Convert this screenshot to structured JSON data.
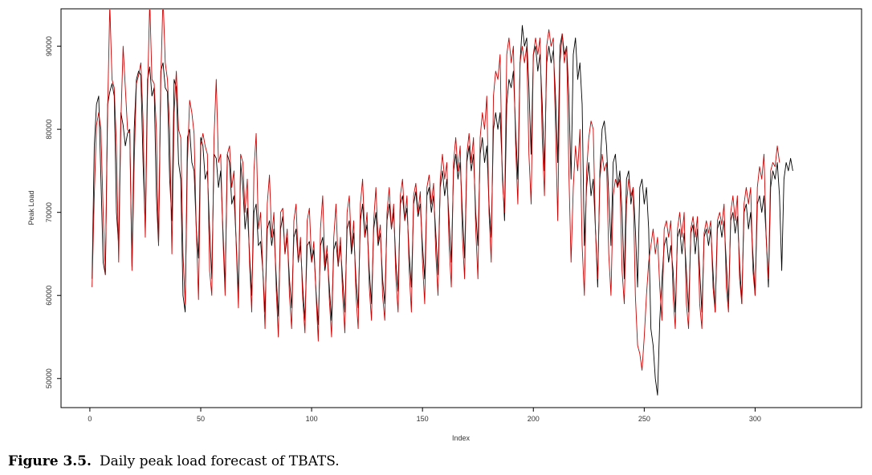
{
  "caption": {
    "label": "Figure 3.5.",
    "text": "Daily peak load forecast of TBATS."
  },
  "chart_data": {
    "type": "line",
    "xlabel": "Index",
    "ylabel": "Peak Load",
    "xlim": [
      -13,
      348
    ],
    "ylim": [
      46500,
      94500
    ],
    "xticks": [
      0,
      50,
      100,
      150,
      200,
      250,
      300
    ],
    "yticks": [
      50000,
      60000,
      70000,
      80000,
      90000
    ],
    "grid": false,
    "colors": {
      "actual": "#000000",
      "forecast": "#cc0000"
    },
    "series": [
      {
        "key": "actual",
        "color": "#000000",
        "x_start": 1,
        "values": [
          62000,
          78000,
          83000,
          84000,
          74000,
          64000,
          62500,
          83000,
          84500,
          85500,
          84000,
          70000,
          66000,
          82000,
          80500,
          78000,
          79500,
          80000,
          63500,
          80000,
          86000,
          87000,
          86500,
          76000,
          68000,
          86000,
          87500,
          84000,
          85000,
          72000,
          66000,
          87000,
          88000,
          85000,
          84500,
          74000,
          69000,
          86000,
          85000,
          76000,
          74000,
          60000,
          58000,
          79000,
          80000,
          76000,
          75000,
          68000,
          64500,
          79000,
          78000,
          74000,
          75000,
          68000,
          62000,
          77000,
          76500,
          73000,
          75000,
          68000,
          61000,
          77000,
          76000,
          71000,
          72000,
          66500,
          60000,
          76000,
          73000,
          68000,
          70500,
          65000,
          60000,
          70000,
          71000,
          66000,
          66500,
          63000,
          58000,
          68000,
          69000,
          66000,
          68000,
          62500,
          57500,
          68000,
          69500,
          65000,
          67000,
          62000,
          58500,
          67000,
          68000,
          64000,
          66000,
          61000,
          57000,
          66000,
          66500,
          64000,
          65500,
          60500,
          56500,
          66000,
          67000,
          63000,
          65000,
          61000,
          57000,
          65500,
          66500,
          63500,
          66000,
          62000,
          58000,
          68000,
          69000,
          65000,
          67500,
          62000,
          58500,
          69000,
          71000,
          67000,
          68500,
          63000,
          59000,
          68000,
          70000,
          66000,
          67500,
          62000,
          59000,
          69000,
          71000,
          68000,
          70000,
          64000,
          60500,
          71000,
          72000,
          69000,
          70500,
          65000,
          61000,
          71000,
          72500,
          69500,
          71000,
          66000,
          62000,
          72000,
          73000,
          70000,
          72000,
          67500,
          62500,
          73000,
          75000,
          72000,
          74000,
          69000,
          64000,
          75000,
          77000,
          74000,
          76000,
          70000,
          64500,
          76000,
          78000,
          75000,
          77000,
          70000,
          66000,
          77000,
          79000,
          76000,
          78000,
          71000,
          67000,
          80000,
          82000,
          80000,
          82000,
          75000,
          69000,
          83000,
          86000,
          85000,
          87000,
          80000,
          74000,
          88000,
          92500,
          90000,
          91000,
          85000,
          77000,
          89000,
          90000,
          87000,
          89000,
          83000,
          75000,
          88000,
          90000,
          88000,
          89500,
          84000,
          76000,
          90000,
          91500,
          89000,
          90000,
          84000,
          74000,
          89000,
          91000,
          86000,
          88000,
          83000,
          66000,
          73000,
          76000,
          72000,
          74000,
          68000,
          61000,
          75000,
          80000,
          81000,
          78000,
          72000,
          66000,
          76000,
          77000,
          73000,
          75000,
          70000,
          62000,
          74000,
          75000,
          71000,
          73000,
          68000,
          61000,
          73000,
          74000,
          71000,
          73000,
          68000,
          56000,
          54000,
          50000,
          48000,
          57000,
          62000,
          66000,
          67000,
          64000,
          66000,
          63000,
          58000,
          67000,
          68000,
          65000,
          67500,
          63000,
          58000,
          67500,
          68500,
          65000,
          68000,
          63000,
          58000,
          67000,
          68000,
          66000,
          68000,
          63000,
          58000,
          68000,
          69000,
          67000,
          69000,
          64000,
          59000,
          69000,
          70000,
          67500,
          69500,
          64000,
          59000,
          70000,
          71000,
          68000,
          70000,
          65000,
          60000,
          71000,
          72000,
          70000,
          72000,
          67000,
          61000,
          73000,
          75000,
          74000,
          76000,
          72000,
          63000,
          74000,
          76000,
          75000,
          76500,
          75000
        ]
      },
      {
        "key": "forecast",
        "color": "#cc0000",
        "x_start": 1,
        "values": [
          61000,
          72000,
          80500,
          82000,
          80000,
          70000,
          62500,
          82000,
          95000,
          86000,
          85000,
          78000,
          64000,
          81000,
          90000,
          85000,
          80000,
          79500,
          63000,
          76000,
          85500,
          86500,
          88000,
          81000,
          67000,
          84000,
          95500,
          86000,
          85500,
          80000,
          66000,
          86000,
          96000,
          88000,
          86000,
          80000,
          65000,
          82000,
          87000,
          80000,
          79000,
          65000,
          59000,
          76000,
          83500,
          82000,
          79500,
          68000,
          59500,
          78000,
          79500,
          78000,
          77000,
          63000,
          60000,
          79000,
          86000,
          76000,
          77000,
          67000,
          60000,
          77000,
          78000,
          73000,
          75000,
          66000,
          58500,
          77000,
          76000,
          70000,
          74000,
          64000,
          58000,
          75000,
          79500,
          68000,
          70000,
          63000,
          56000,
          71000,
          74500,
          67000,
          70000,
          61000,
          55000,
          70000,
          70500,
          65000,
          68000,
          60000,
          56000,
          69000,
          71000,
          64000,
          67000,
          59500,
          55500,
          69000,
          70500,
          64000,
          66500,
          60000,
          54500,
          68000,
          72000,
          63500,
          66000,
          59500,
          55000,
          67000,
          71000,
          63500,
          67000,
          60000,
          55500,
          70000,
          72000,
          65500,
          69000,
          60000,
          56000,
          71000,
          74000,
          67000,
          70000,
          61000,
          57000,
          69000,
          73000,
          66500,
          68500,
          60000,
          57000,
          70000,
          73000,
          68000,
          71000,
          62000,
          58000,
          72000,
          74000,
          69000,
          72000,
          63000,
          58000,
          72000,
          73500,
          70000,
          72500,
          64000,
          59000,
          73000,
          74500,
          71000,
          73500,
          65000,
          60000,
          74000,
          77000,
          74000,
          76000,
          66000,
          61000,
          76000,
          79000,
          75000,
          78000,
          67000,
          62000,
          77000,
          79500,
          76000,
          79000,
          68000,
          62000,
          79000,
          82000,
          80000,
          84000,
          70000,
          64000,
          84000,
          87000,
          86000,
          89000,
          74000,
          70000,
          89000,
          91000,
          88000,
          90000,
          78000,
          71000,
          88000,
          90000,
          88000,
          90000,
          77000,
          71000,
          89000,
          91000,
          89000,
          91000,
          79000,
          72000,
          90000,
          92000,
          90000,
          91000,
          80000,
          69000,
          88000,
          91500,
          88000,
          90000,
          75000,
          64000,
          73000,
          78000,
          75000,
          80000,
          66000,
          60000,
          75000,
          79000,
          81000,
          80000,
          68000,
          62000,
          74000,
          77000,
          75000,
          76000,
          65000,
          60000,
          72000,
          74000,
          73000,
          74000,
          63000,
          59000,
          71000,
          74000,
          72000,
          73000,
          60000,
          54000,
          53000,
          51000,
          55000,
          60000,
          64000,
          66000,
          68000,
          65000,
          67000,
          61000,
          57000,
          68000,
          69000,
          67000,
          69000,
          60000,
          56000,
          68000,
          70000,
          67000,
          70000,
          59000,
          56000,
          68000,
          69500,
          67000,
          69500,
          59000,
          56000,
          67500,
          69000,
          67500,
          69000,
          61000,
          58000,
          69000,
          70000,
          68500,
          71000,
          61000,
          58000,
          70000,
          72000,
          69000,
          72000,
          62000,
          59000,
          71000,
          73000,
          71000,
          73000,
          63000,
          60000,
          73000,
          75500,
          74000,
          77000,
          67000,
          62000,
          75000,
          76000,
          75500,
          78000,
          76000
        ]
      }
    ]
  }
}
